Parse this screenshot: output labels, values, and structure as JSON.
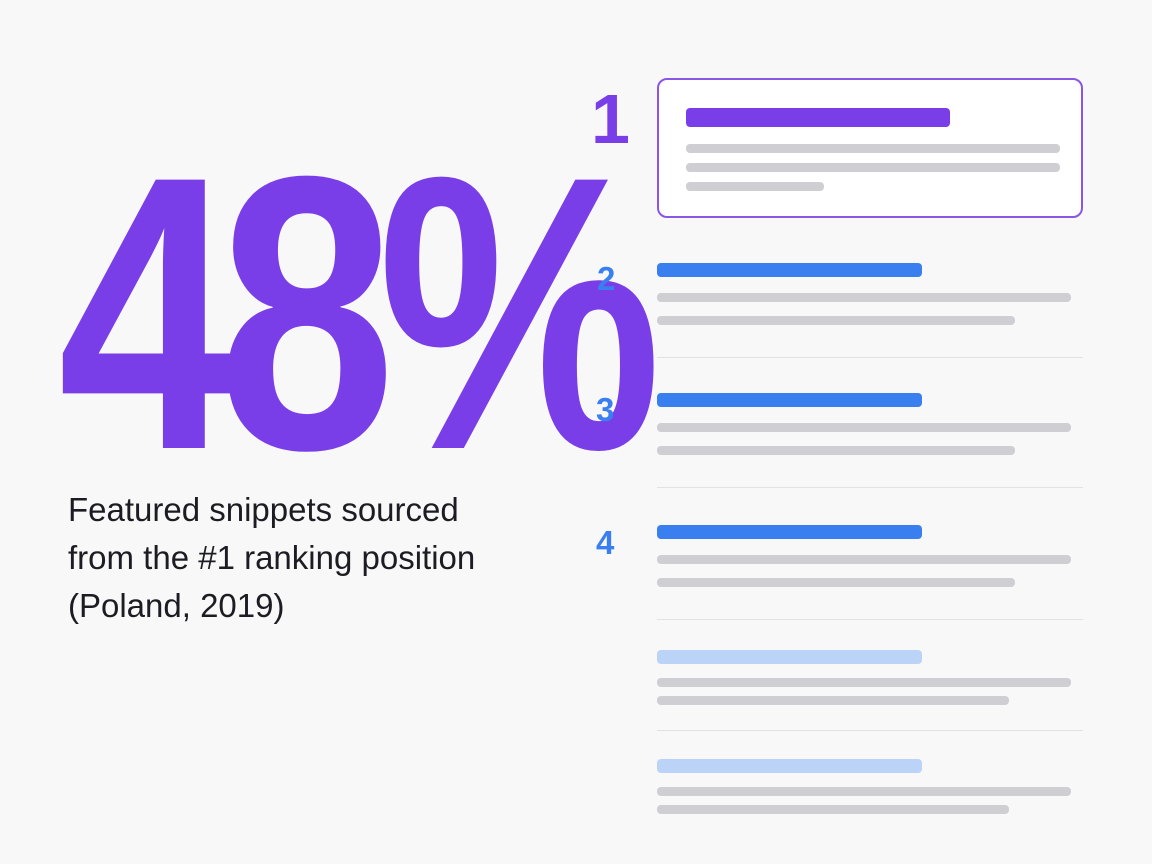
{
  "stat": {
    "value": "48%"
  },
  "caption": {
    "line1": "Featured snippets sourced",
    "line2": "from the #1 ranking position",
    "line3": "(Poland, 2019)"
  },
  "results": {
    "ranks": [
      "1",
      "2",
      "3",
      "4"
    ]
  },
  "colors": {
    "accent_purple": "#7a3ee8",
    "accent_blue": "#3a7ff0",
    "placeholder_grey": "#cfcfd3",
    "faded_blue": "#bcd3f8"
  }
}
